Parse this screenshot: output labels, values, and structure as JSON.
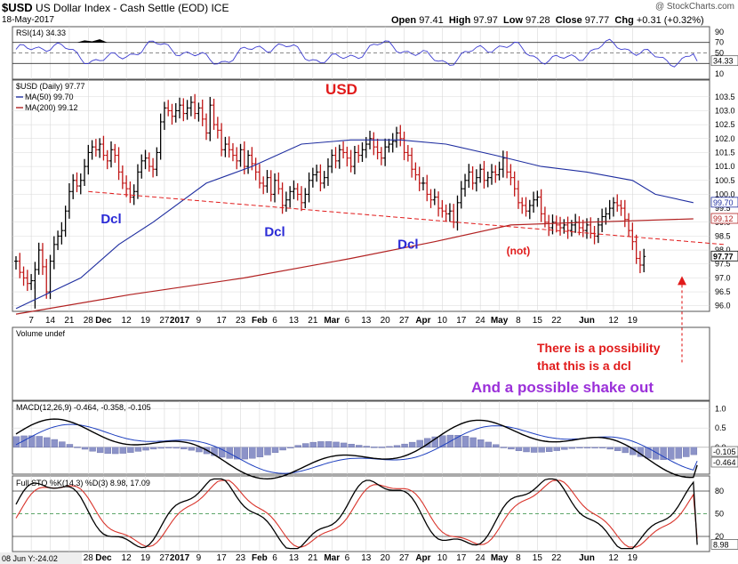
{
  "header": {
    "symbol": "$USD",
    "name": "US Dollar Index - Cash Settle (EOD)",
    "exchange": "ICE",
    "date": "18-May-2017",
    "watermark": "@ StockCharts.com",
    "ohlc": {
      "open_label": "Open",
      "open": "97.41",
      "high_label": "High",
      "high": "97.97",
      "low_label": "Low",
      "low": "97.28",
      "close_label": "Close",
      "close": "97.77",
      "chg_label": "Chg",
      "chg": "+0.31 (+0.32%)"
    },
    "footer_date": "08 Jun Y:-24.02"
  },
  "colors": {
    "ma50": "#1f2ea0",
    "ma200": "#b22222",
    "rsi": "#3b3bd0",
    "annotation_red": "#e11b1b",
    "annotation_blue": "#2a2ad6",
    "annotation_purple": "#9b30d9",
    "macd_hist": "#8c93c8",
    "sto_d": "#d9342b",
    "grid": "#d8d8d8",
    "panel_border": "#555555"
  },
  "chart_data": {
    "type": "ohlc",
    "price": {
      "label": "$USD (Daily) 97.77",
      "ylim": [
        95.8,
        104.1
      ],
      "yticks": [
        "103.5",
        "103.0",
        "102.5",
        "102.0",
        "101.5",
        "101.0",
        "100.5",
        "100.0",
        "99.5",
        "99.0",
        "98.5",
        "98.0",
        "97.5",
        "97.0",
        "96.5",
        "96.0"
      ],
      "last_value_labels": [
        {
          "text": "99.70",
          "value": 99.7
        },
        {
          "text": "99.12",
          "value": 99.12
        },
        {
          "text": "97.77",
          "value": 97.77
        }
      ],
      "legend": [
        {
          "text": "MA(50) 99.70",
          "series": "ma50"
        },
        {
          "text": "MA(200) 99.12",
          "series": "ma200"
        }
      ],
      "closes": [
        97.6,
        97.2,
        97.0,
        96.8,
        96.9,
        97.3,
        98.0,
        97.4,
        96.5,
        97.6,
        98.2,
        98.5,
        98.7,
        99.4,
        100.1,
        100.5,
        100.3,
        100.5,
        101.0,
        101.5,
        101.7,
        101.6,
        101.8,
        101.4,
        101.2,
        101.6,
        101.4,
        100.8,
        100.4,
        100.2,
        99.9,
        100.1,
        100.8,
        101.2,
        101.3,
        101.0,
        100.9,
        101.5,
        102.6,
        103.1,
        103.0,
        102.8,
        103.0,
        103.2,
        102.9,
        103.1,
        103.3,
        102.9,
        103.1,
        102.7,
        102.2,
        103.2,
        102.5,
        102.3,
        101.6,
        101.8,
        101.6,
        101.4,
        101.2,
        101.6,
        101.0,
        101.4,
        101.1,
        100.8,
        100.4,
        100.3,
        100.6,
        100.0,
        100.5,
        100.2,
        99.6,
        99.8,
        100.1,
        100.2,
        100.0,
        99.7,
        100.0,
        100.5,
        100.7,
        100.8,
        100.4,
        100.6,
        101.0,
        101.4,
        101.2,
        101.6,
        101.5,
        101.3,
        101.0,
        101.5,
        101.4,
        101.6,
        101.8,
        102.0,
        101.7,
        101.5,
        101.3,
        101.7,
        101.8,
        101.9,
        102.2,
        102.0,
        101.5,
        101.4,
        100.9,
        100.7,
        100.4,
        100.4,
        100.0,
        99.8,
        99.9,
        99.5,
        99.4,
        99.3,
        99.4,
        99.0,
        99.7,
        100.2,
        100.5,
        100.8,
        100.4,
        100.6,
        100.9,
        100.5,
        100.6,
        100.8,
        100.7,
        100.9,
        101.3,
        100.8,
        100.6,
        100.2,
        99.7,
        99.6,
        99.4,
        99.6,
        99.8,
        99.9,
        99.3,
        99.0,
        98.8,
        99.0,
        98.9,
        98.8,
        98.9,
        98.7,
        98.9,
        99.0,
        98.8,
        98.7,
        98.9,
        98.6,
        98.5,
        98.9,
        99.2,
        99.3,
        99.5,
        99.7,
        99.6,
        99.5,
        99.1,
        98.7,
        98.3,
        97.7,
        97.46,
        97.77
      ],
      "ma50_points": [
        [
          0,
          95.9
        ],
        [
          17,
          97.0
        ],
        [
          27,
          98.2
        ],
        [
          36,
          99.0
        ],
        [
          50,
          100.4
        ],
        [
          62,
          101.0
        ],
        [
          75,
          101.8
        ],
        [
          88,
          101.95
        ],
        [
          101,
          101.95
        ],
        [
          113,
          101.8
        ],
        [
          126,
          101.4
        ],
        [
          138,
          101.0
        ],
        [
          150,
          100.8
        ],
        [
          162,
          100.5
        ],
        [
          168,
          100.0
        ],
        [
          178,
          99.7
        ]
      ],
      "ma200_points": [
        [
          0,
          95.7
        ],
        [
          30,
          96.4
        ],
        [
          60,
          97.0
        ],
        [
          88,
          97.7
        ],
        [
          110,
          98.3
        ],
        [
          130,
          98.9
        ],
        [
          150,
          99.0
        ],
        [
          178,
          99.12
        ]
      ],
      "dcl_trendline": [
        [
          19,
          100.1
        ],
        [
          186,
          98.2
        ]
      ]
    },
    "rsi": {
      "label": "RSI(14) 34.33",
      "ylim": [
        0,
        100
      ],
      "levels": [
        70,
        50,
        30
      ],
      "yticks": [
        "90",
        "70",
        "50",
        "10"
      ],
      "last_value": "34.33"
    },
    "volume": {
      "label": "Volume undef"
    },
    "macd": {
      "label": "MACD(12,26,9) -0.464, -0.358, -0.105",
      "ylim": [
        -0.7,
        1.2
      ],
      "yticks": [
        "1.0",
        "0.5",
        "0.0"
      ],
      "last_value_labels": [
        "-0.105",
        "-0.464"
      ]
    },
    "sto": {
      "label": "Full STO %K(14,3) %D(3) 8.98, 17.09",
      "ylim": [
        0,
        100
      ],
      "levels": [
        80,
        50,
        20
      ],
      "yticks": [
        "80",
        "50",
        "20"
      ],
      "last_value": "8.98"
    },
    "x_axis": {
      "labels": [
        {
          "text": "7",
          "i": 4
        },
        {
          "text": "14",
          "i": 9
        },
        {
          "text": "21",
          "i": 14
        },
        {
          "text": "28",
          "i": 19
        },
        {
          "text": "Dec",
          "i": 23,
          "bold": true
        },
        {
          "text": "12",
          "i": 29
        },
        {
          "text": "19",
          "i": 34
        },
        {
          "text": "27",
          "i": 39
        },
        {
          "text": "2017",
          "i": 43,
          "bold": true
        },
        {
          "text": "9",
          "i": 48
        },
        {
          "text": "17",
          "i": 54
        },
        {
          "text": "23",
          "i": 59
        },
        {
          "text": "Feb",
          "i": 64,
          "bold": true
        },
        {
          "text": "6",
          "i": 68
        },
        {
          "text": "13",
          "i": 73
        },
        {
          "text": "21",
          "i": 78
        },
        {
          "text": "Mar",
          "i": 83,
          "bold": true
        },
        {
          "text": "6",
          "i": 87
        },
        {
          "text": "13",
          "i": 92
        },
        {
          "text": "20",
          "i": 97
        },
        {
          "text": "27",
          "i": 102
        },
        {
          "text": "Apr",
          "i": 107,
          "bold": true
        },
        {
          "text": "10",
          "i": 112
        },
        {
          "text": "17",
          "i": 117
        },
        {
          "text": "24",
          "i": 122
        },
        {
          "text": "May",
          "i": 127,
          "bold": true
        },
        {
          "text": "8",
          "i": 132
        },
        {
          "text": "15",
          "i": 137
        },
        {
          "text": "22",
          "i": 142
        },
        {
          "text": "Jun",
          "i": 150,
          "bold": true
        },
        {
          "text": "12",
          "i": 157
        },
        {
          "text": "19",
          "i": 162
        }
      ]
    },
    "annotations": [
      {
        "id": "usd-title",
        "text": "USD",
        "color": "annotation_red",
        "panel": "price"
      },
      {
        "id": "dcl-1",
        "text": "Dcl",
        "color": "annotation_blue",
        "i": 25,
        "value": 99.4
      },
      {
        "id": "dcl-2",
        "text": "Dcl",
        "color": "annotation_blue",
        "i": 68,
        "value": 98.95
      },
      {
        "id": "dcl-3",
        "text": "Dcl",
        "color": "annotation_blue",
        "i": 103,
        "value": 98.5
      },
      {
        "id": "not",
        "text": "(not)",
        "color": "annotation_red",
        "i": 132,
        "value": 98.1
      },
      {
        "id": "possibility-1",
        "text": "There is a possibility",
        "color": "annotation_red"
      },
      {
        "id": "possibility-2",
        "text": "that this is a dcl",
        "color": "annotation_red"
      },
      {
        "id": "shakeout",
        "text": "And a possible shake out",
        "color": "annotation_purple"
      }
    ]
  }
}
